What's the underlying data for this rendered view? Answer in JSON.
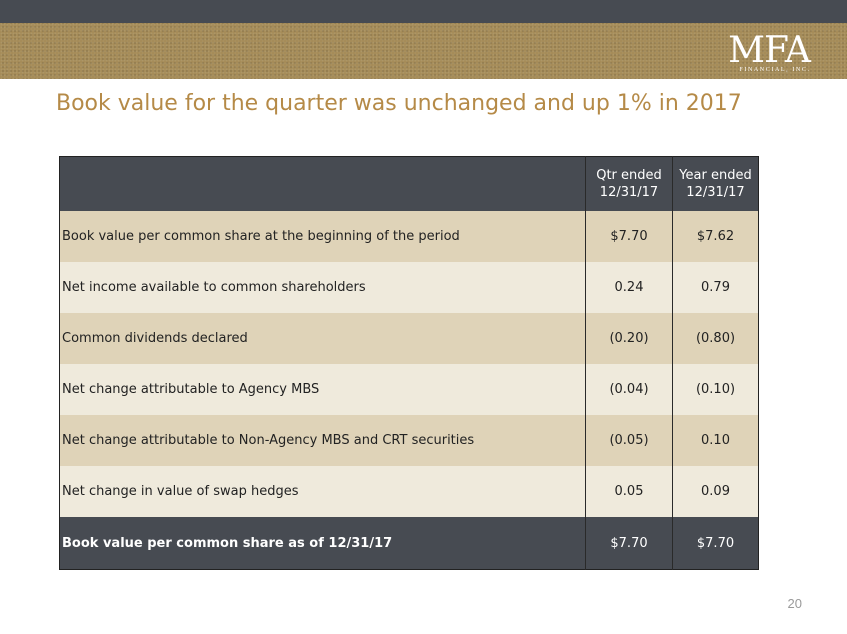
{
  "header": {
    "logo_text": "MFA",
    "logo_subtext": "FINANCIAL, INC."
  },
  "slide": {
    "title": "Book value for the quarter was unchanged and up 1% in 2017",
    "page_number": "20"
  },
  "table": {
    "columns": [
      "",
      "Qtr ended 12/31/17",
      "Year ended 12/31/17"
    ],
    "column_lines": [
      [
        "Qtr ended",
        "12/31/17"
      ],
      [
        "Year ended",
        "12/31/17"
      ]
    ],
    "rows": [
      {
        "label": "Book value per common share at the beginning of the period",
        "qtr": "$7.70",
        "year": "$7.62"
      },
      {
        "label": "Net income available to common shareholders",
        "qtr": "0.24",
        "year": "0.79"
      },
      {
        "label": "Common dividends declared",
        "qtr": "(0.20)",
        "year": "(0.80)"
      },
      {
        "label": "Net change attributable to Agency MBS",
        "qtr": "(0.04)",
        "year": "(0.10)"
      },
      {
        "label": "Net change attributable to Non-Agency MBS and CRT securities",
        "qtr": "(0.05)",
        "year": "0.10"
      },
      {
        "label": "Net change in value of swap hedges",
        "qtr": "0.05",
        "year": "0.09"
      }
    ],
    "total": {
      "label": "Book value per common share as of 12/31/17",
      "qtr": "$7.70",
      "year": "$7.70"
    }
  },
  "colors": {
    "top_bar": "#474b52",
    "gold_band": "#a48a56",
    "title": "#b58a47",
    "row_dark": "#dfd3b8",
    "row_light": "#efeadc"
  }
}
